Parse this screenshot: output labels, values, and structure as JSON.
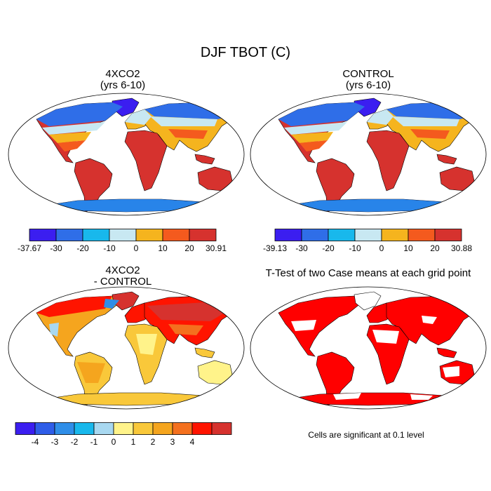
{
  "title": "DJF TBOT (C)",
  "panels": [
    {
      "id": "p1",
      "title_lines": [
        "4XCO2",
        "(yrs 6-10)"
      ]
    },
    {
      "id": "p2",
      "title_lines": [
        "CONTROL",
        "(yrs 6-10)"
      ]
    },
    {
      "id": "p3",
      "title_lines": [
        "4XCO2",
        "- CONTROL"
      ]
    },
    {
      "id": "p4",
      "title_lines": [
        "T-Test of two Case means at each grid point"
      ]
    }
  ],
  "colorbars": [
    {
      "id": "cb1",
      "colors": [
        "#3b1ef0",
        "#2f6ee8",
        "#18b8ec",
        "#c8e8f2",
        "#f5b41e",
        "#f45a1e",
        "#d6322e"
      ],
      "labels": [
        "-37.67",
        "-30",
        "-20",
        "-10",
        "0",
        "10",
        "20",
        "30.91"
      ],
      "edge_labels": true
    },
    {
      "id": "cb2",
      "colors": [
        "#3b1ef0",
        "#2f6ee8",
        "#18b8ec",
        "#c8e8f2",
        "#f5b41e",
        "#f45a1e",
        "#d6322e"
      ],
      "labels": [
        "-39.13",
        "-30",
        "-20",
        "-10",
        "0",
        "10",
        "20",
        "30.88"
      ],
      "edge_labels": true
    },
    {
      "id": "cb3",
      "colors": [
        "#3b1ef0",
        "#2e5de8",
        "#2f8ee8",
        "#18b8ec",
        "#a8d8f0",
        "#fff38a",
        "#f9c83a",
        "#f5a51e",
        "#f4701e",
        "#ff1400",
        "#d6322e"
      ],
      "labels": [
        "-4",
        "-3",
        "-2",
        "-1",
        "0",
        "1",
        "2",
        "3",
        "4"
      ],
      "edge_labels": false
    }
  ],
  "significance_note": "Cells are significant at 0.1 level",
  "palette": {
    "map_border": "#000000",
    "significant": "#ff0000"
  }
}
